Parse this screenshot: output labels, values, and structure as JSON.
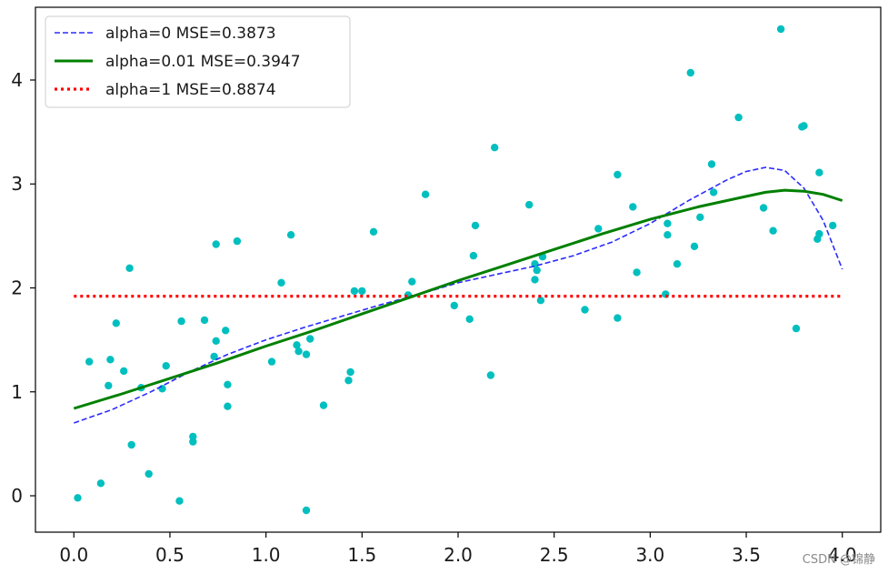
{
  "chart_data": {
    "type": "scatter",
    "title": "",
    "xlabel": "",
    "ylabel": "",
    "xlim": [
      -0.2,
      4.2
    ],
    "ylim": [
      -0.35,
      4.7
    ],
    "xticks": [
      0.0,
      0.5,
      1.0,
      1.5,
      2.0,
      2.5,
      3.0,
      3.5,
      4.0
    ],
    "xtick_labels": [
      "0.0",
      "0.5",
      "1.0",
      "1.5",
      "2.0",
      "2.5",
      "3.0",
      "3.5",
      "4.0"
    ],
    "yticks": [
      0,
      1,
      2,
      3,
      4
    ],
    "ytick_labels": [
      "0",
      "1",
      "2",
      "3",
      "4"
    ],
    "grid": false,
    "legend_position": "top-left",
    "scatter": {
      "name": "data",
      "color": "#00bfbf",
      "points": [
        [
          0.02,
          -0.02
        ],
        [
          0.08,
          1.29
        ],
        [
          0.14,
          0.12
        ],
        [
          0.18,
          1.06
        ],
        [
          0.19,
          1.31
        ],
        [
          0.22,
          1.66
        ],
        [
          0.26,
          1.2
        ],
        [
          0.29,
          2.19
        ],
        [
          0.3,
          0.49
        ],
        [
          0.35,
          1.04
        ],
        [
          0.39,
          0.21
        ],
        [
          0.46,
          1.03
        ],
        [
          0.48,
          1.25
        ],
        [
          0.55,
          -0.05
        ],
        [
          0.56,
          1.68
        ],
        [
          0.62,
          0.52
        ],
        [
          0.62,
          0.57
        ],
        [
          0.68,
          1.69
        ],
        [
          0.73,
          1.34
        ],
        [
          0.74,
          1.49
        ],
        [
          0.74,
          2.42
        ],
        [
          0.79,
          1.59
        ],
        [
          0.8,
          1.07
        ],
        [
          0.8,
          0.86
        ],
        [
          0.85,
          2.45
        ],
        [
          1.03,
          1.29
        ],
        [
          1.08,
          2.05
        ],
        [
          1.13,
          2.51
        ],
        [
          1.16,
          1.45
        ],
        [
          1.17,
          1.39
        ],
        [
          1.21,
          1.36
        ],
        [
          1.21,
          -0.14
        ],
        [
          1.23,
          1.51
        ],
        [
          1.3,
          0.87
        ],
        [
          1.43,
          1.11
        ],
        [
          1.44,
          1.19
        ],
        [
          1.46,
          1.97
        ],
        [
          1.5,
          1.97
        ],
        [
          1.56,
          2.54
        ],
        [
          1.74,
          1.93
        ],
        [
          1.76,
          2.06
        ],
        [
          1.83,
          2.9
        ],
        [
          1.98,
          1.83
        ],
        [
          2.06,
          1.7
        ],
        [
          2.08,
          2.31
        ],
        [
          2.09,
          2.6
        ],
        [
          2.17,
          1.16
        ],
        [
          2.19,
          3.35
        ],
        [
          2.37,
          2.8
        ],
        [
          2.4,
          2.08
        ],
        [
          2.4,
          2.23
        ],
        [
          2.41,
          2.17
        ],
        [
          2.43,
          1.88
        ],
        [
          2.44,
          2.3
        ],
        [
          2.66,
          1.79
        ],
        [
          2.73,
          2.57
        ],
        [
          2.83,
          1.71
        ],
        [
          2.83,
          3.09
        ],
        [
          2.91,
          2.78
        ],
        [
          2.93,
          2.15
        ],
        [
          3.08,
          1.94
        ],
        [
          3.09,
          2.62
        ],
        [
          3.09,
          2.51
        ],
        [
          3.14,
          2.23
        ],
        [
          3.21,
          4.07
        ],
        [
          3.23,
          2.4
        ],
        [
          3.26,
          2.68
        ],
        [
          3.32,
          3.19
        ],
        [
          3.33,
          2.92
        ],
        [
          3.46,
          3.64
        ],
        [
          3.59,
          2.77
        ],
        [
          3.64,
          2.55
        ],
        [
          3.68,
          4.49
        ],
        [
          3.76,
          1.61
        ],
        [
          3.79,
          3.55
        ],
        [
          3.8,
          3.56
        ],
        [
          3.87,
          2.47
        ],
        [
          3.88,
          2.52
        ],
        [
          3.88,
          3.11
        ],
        [
          3.95,
          2.6
        ]
      ]
    },
    "series": [
      {
        "name": "alpha=0 MSE=0.3873",
        "color": "#2b2bff",
        "style": "dashed",
        "x": [
          0.0,
          0.2,
          0.4,
          0.6,
          0.8,
          1.0,
          1.2,
          1.4,
          1.6,
          1.8,
          2.0,
          2.2,
          2.4,
          2.6,
          2.8,
          3.0,
          3.2,
          3.4,
          3.5,
          3.6,
          3.7,
          3.8,
          3.9,
          4.0
        ],
        "y": [
          0.7,
          0.83,
          1.0,
          1.19,
          1.36,
          1.5,
          1.62,
          1.73,
          1.84,
          1.94,
          2.05,
          2.13,
          2.21,
          2.31,
          2.44,
          2.62,
          2.84,
          3.04,
          3.12,
          3.16,
          3.13,
          2.96,
          2.65,
          2.18
        ]
      },
      {
        "name": "alpha=0.01 MSE=0.3947",
        "color": "#008000",
        "style": "solid",
        "x": [
          0.0,
          0.25,
          0.5,
          0.75,
          1.0,
          1.25,
          1.5,
          1.75,
          2.0,
          2.25,
          2.5,
          2.75,
          3.0,
          3.25,
          3.5,
          3.6,
          3.7,
          3.8,
          3.9,
          4.0
        ],
        "y": [
          0.84,
          0.98,
          1.13,
          1.28,
          1.44,
          1.59,
          1.75,
          1.91,
          2.07,
          2.22,
          2.37,
          2.52,
          2.66,
          2.78,
          2.88,
          2.92,
          2.94,
          2.93,
          2.9,
          2.84
        ]
      },
      {
        "name": "alpha=1 MSE=0.8874",
        "color": "#ff0000",
        "style": "dotted",
        "x": [
          0.0,
          4.0
        ],
        "y": [
          1.92,
          1.92
        ]
      }
    ]
  },
  "watermark": "CSDN @锦静"
}
